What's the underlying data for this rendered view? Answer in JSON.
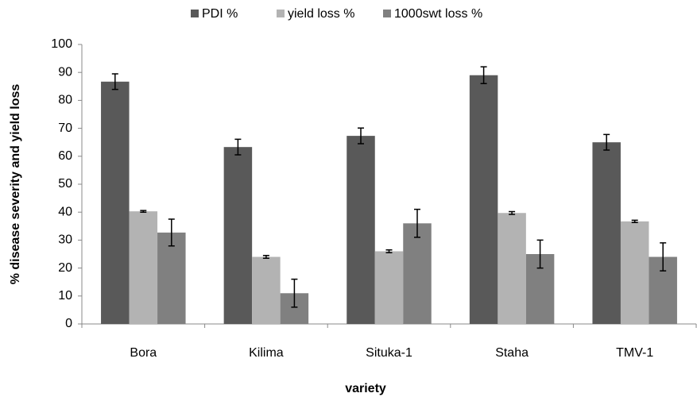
{
  "chart_data": {
    "type": "bar",
    "x_label": "variety",
    "y_label": "% disease severity and yield loss",
    "categories": [
      "Bora",
      "Kilima",
      "Situka-1",
      "Staha",
      "TMV-1"
    ],
    "series": [
      {
        "name": "PDI %",
        "color": "#595959",
        "values": [
          86.7,
          63.3,
          67.3,
          89,
          65
        ],
        "errors": [
          2.8,
          2.8,
          2.8,
          3,
          2.8
        ]
      },
      {
        "name": "yield loss %",
        "color": "#b3b3b3",
        "values": [
          40.3,
          24,
          26,
          39.7,
          36.7
        ],
        "errors": [
          0.3,
          0.5,
          0.5,
          0.5,
          0.4
        ]
      },
      {
        "name": "1000swt loss %",
        "color": "#808080",
        "values": [
          32.7,
          11,
          36,
          25,
          24
        ],
        "errors": [
          4.8,
          5,
          5,
          5,
          5
        ]
      }
    ],
    "ylim": [
      0,
      100
    ],
    "yticks": [
      0,
      10,
      20,
      30,
      40,
      50,
      60,
      70,
      80,
      90,
      100
    ],
    "legend": "top"
  }
}
